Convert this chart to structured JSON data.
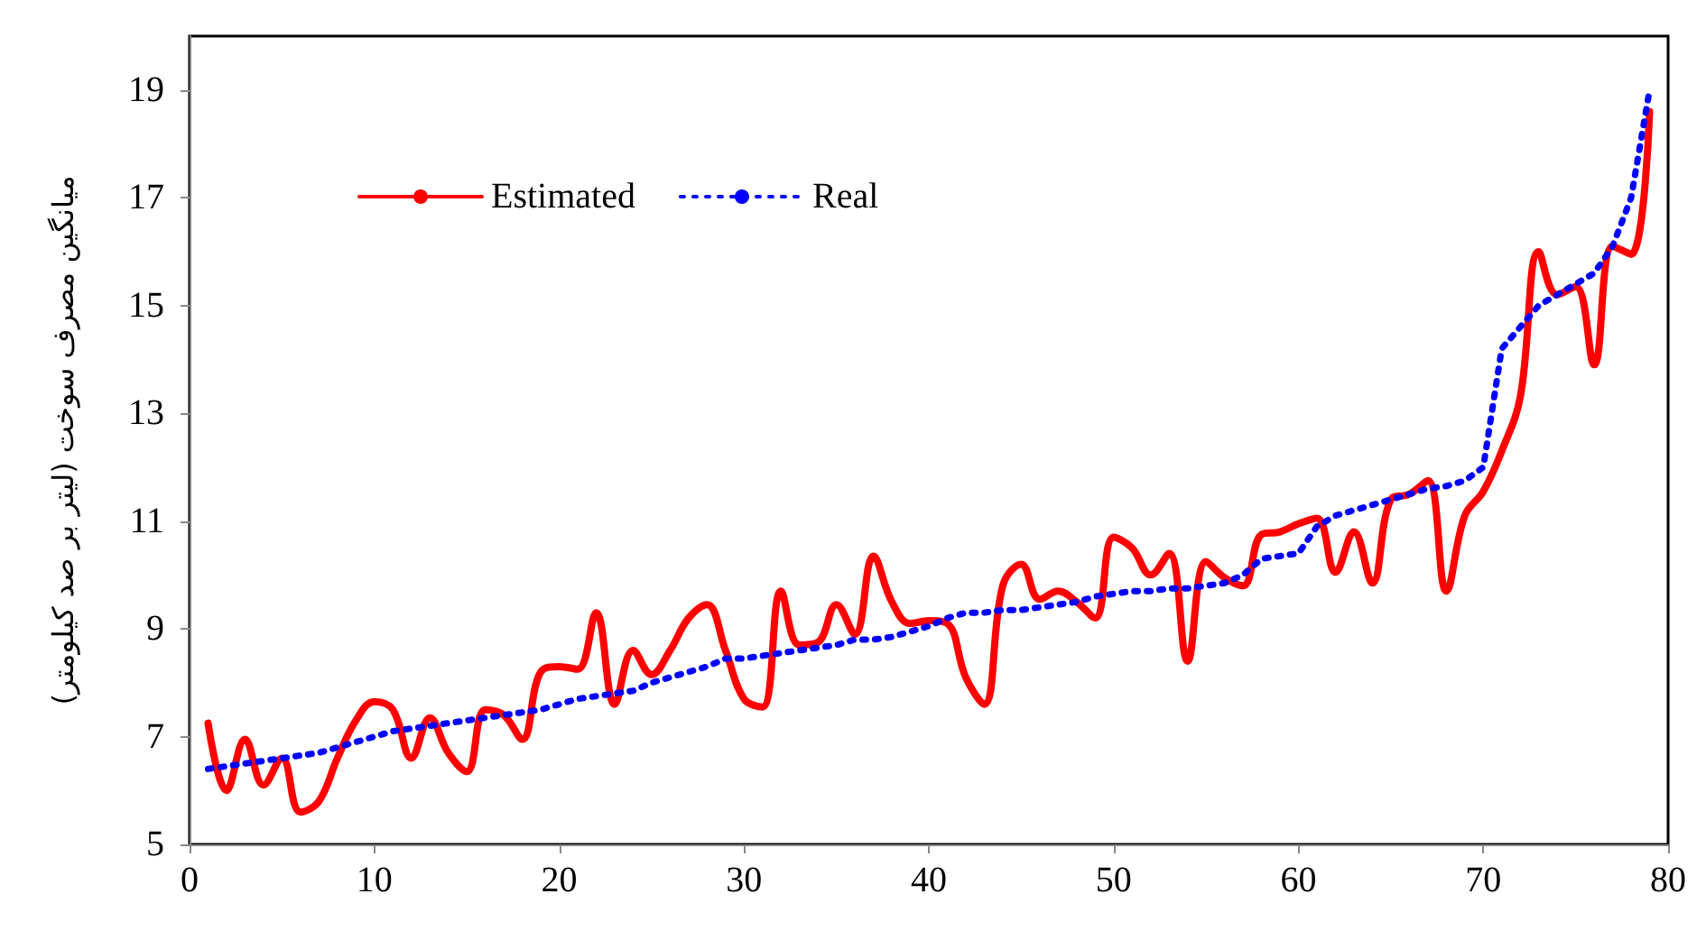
{
  "chart_data": {
    "type": "line",
    "ylabel": "میانگین مصرف سوخت (لیتر بر صد کیلومتر)",
    "x": [
      1,
      2,
      3,
      4,
      5,
      6,
      7,
      8,
      9,
      10,
      11,
      12,
      13,
      14,
      15,
      16,
      17,
      18,
      19,
      20,
      21,
      22,
      23,
      24,
      25,
      26,
      27,
      28,
      29,
      30,
      31,
      32,
      33,
      34,
      35,
      36,
      37,
      38,
      39,
      40,
      41,
      42,
      43,
      44,
      45,
      46,
      47,
      48,
      49,
      50,
      51,
      52,
      53,
      54,
      55,
      56,
      57,
      58,
      59,
      60,
      61,
      62,
      63,
      64,
      65,
      66,
      67,
      68,
      69,
      70,
      71,
      72,
      73,
      74,
      75,
      76,
      77,
      78,
      79
    ],
    "xlim": [
      0,
      80
    ],
    "xticks": [
      0,
      10,
      20,
      30,
      40,
      50,
      60,
      70,
      80
    ],
    "ylim": [
      5,
      20
    ],
    "yticks": [
      5,
      7,
      9,
      11,
      13,
      15,
      17,
      19
    ],
    "grid": false,
    "legend": "top left",
    "marker": "none",
    "series": [
      {
        "name": "Estimated",
        "color": "#ff0000",
        "line_style": "solid",
        "values": [
          7.25,
          6.0,
          6.95,
          6.1,
          6.6,
          5.6,
          5.8,
          6.6,
          7.3,
          7.65,
          7.5,
          6.6,
          7.35,
          6.7,
          6.35,
          7.5,
          7.4,
          6.95,
          8.2,
          8.3,
          8.25,
          9.3,
          7.6,
          8.6,
          8.15,
          8.6,
          9.2,
          9.45,
          8.6,
          7.7,
          7.55,
          9.7,
          8.7,
          8.75,
          9.45,
          8.9,
          10.35,
          9.5,
          9.1,
          9.15,
          9.1,
          8.1,
          7.6,
          9.8,
          10.2,
          9.55,
          9.7,
          9.5,
          9.2,
          10.7,
          10.5,
          10.0,
          10.4,
          8.4,
          10.25,
          9.95,
          9.8,
          10.75,
          10.8,
          10.95,
          11.05,
          10.05,
          10.8,
          9.85,
          11.4,
          11.5,
          11.75,
          9.7,
          11.1,
          11.55,
          12.3,
          13.3,
          16.0,
          15.2,
          15.35,
          13.9,
          16.1,
          15.95,
          18.6
        ]
      },
      {
        "name": "Real",
        "color": "#0000ff",
        "line_style": "dotted",
        "values": [
          6.4,
          6.45,
          6.5,
          6.55,
          6.6,
          6.65,
          6.7,
          6.8,
          6.9,
          7.0,
          7.1,
          7.15,
          7.2,
          7.25,
          7.3,
          7.35,
          7.4,
          7.45,
          7.5,
          7.6,
          7.7,
          7.75,
          7.8,
          7.85,
          8.0,
          8.1,
          8.2,
          8.3,
          8.45,
          8.45,
          8.5,
          8.55,
          8.6,
          8.65,
          8.7,
          8.8,
          8.8,
          8.85,
          8.95,
          9.05,
          9.2,
          9.3,
          9.3,
          9.35,
          9.35,
          9.4,
          9.45,
          9.5,
          9.6,
          9.65,
          9.7,
          9.7,
          9.75,
          9.75,
          9.8,
          9.85,
          10.0,
          10.3,
          10.35,
          10.4,
          10.9,
          11.1,
          11.2,
          11.3,
          11.4,
          11.5,
          11.6,
          11.65,
          11.75,
          12.0,
          14.2,
          14.6,
          15.0,
          15.2,
          15.4,
          15.6,
          16.1,
          17.0,
          19.0
        ]
      }
    ]
  }
}
